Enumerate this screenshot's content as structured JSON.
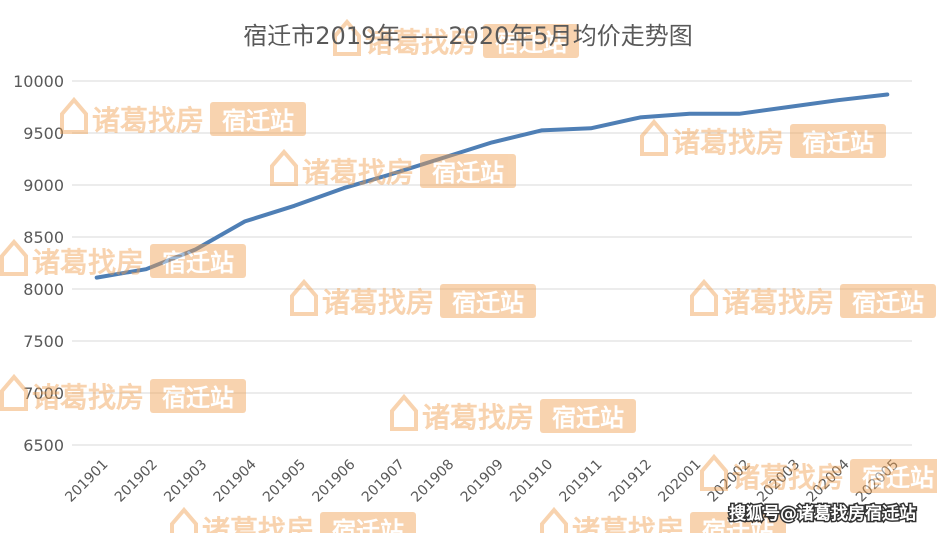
{
  "chart_data": {
    "type": "line",
    "title": "宿迁市2019年——2020年5月均价走势图",
    "xlabel": "",
    "ylabel": "",
    "categories": [
      "201901",
      "201902",
      "201903",
      "201904",
      "201905",
      "201906",
      "201907",
      "201908",
      "201909",
      "201910",
      "201911",
      "201912",
      "202001",
      "202002",
      "202003",
      "202004",
      "202005"
    ],
    "series": [
      {
        "values": [
          8110,
          8190,
          8380,
          8650,
          8800,
          8970,
          9110,
          9260,
          9410,
          9525,
          9545,
          9650,
          9685,
          9685,
          9750,
          9815,
          9870
        ]
      }
    ],
    "ylim": [
      6500,
      10000
    ],
    "yticks": [
      6500,
      7000,
      7500,
      8000,
      8500,
      9000,
      9500,
      10000
    ],
    "ytick_labels": [
      "6500",
      "7000",
      "7500",
      "8000",
      "8500",
      "9000",
      "9500",
      "10000"
    ],
    "grid": true,
    "colors": {
      "line": "#4f7fb5",
      "grid": "#d9d9d9",
      "text": "#595959",
      "watermark": "#f0a050"
    }
  },
  "watermark": {
    "brand": "诸葛找房",
    "badge": "宿迁站"
  },
  "credit": {
    "text": "搜狐号@诸葛找房宿迁站"
  }
}
